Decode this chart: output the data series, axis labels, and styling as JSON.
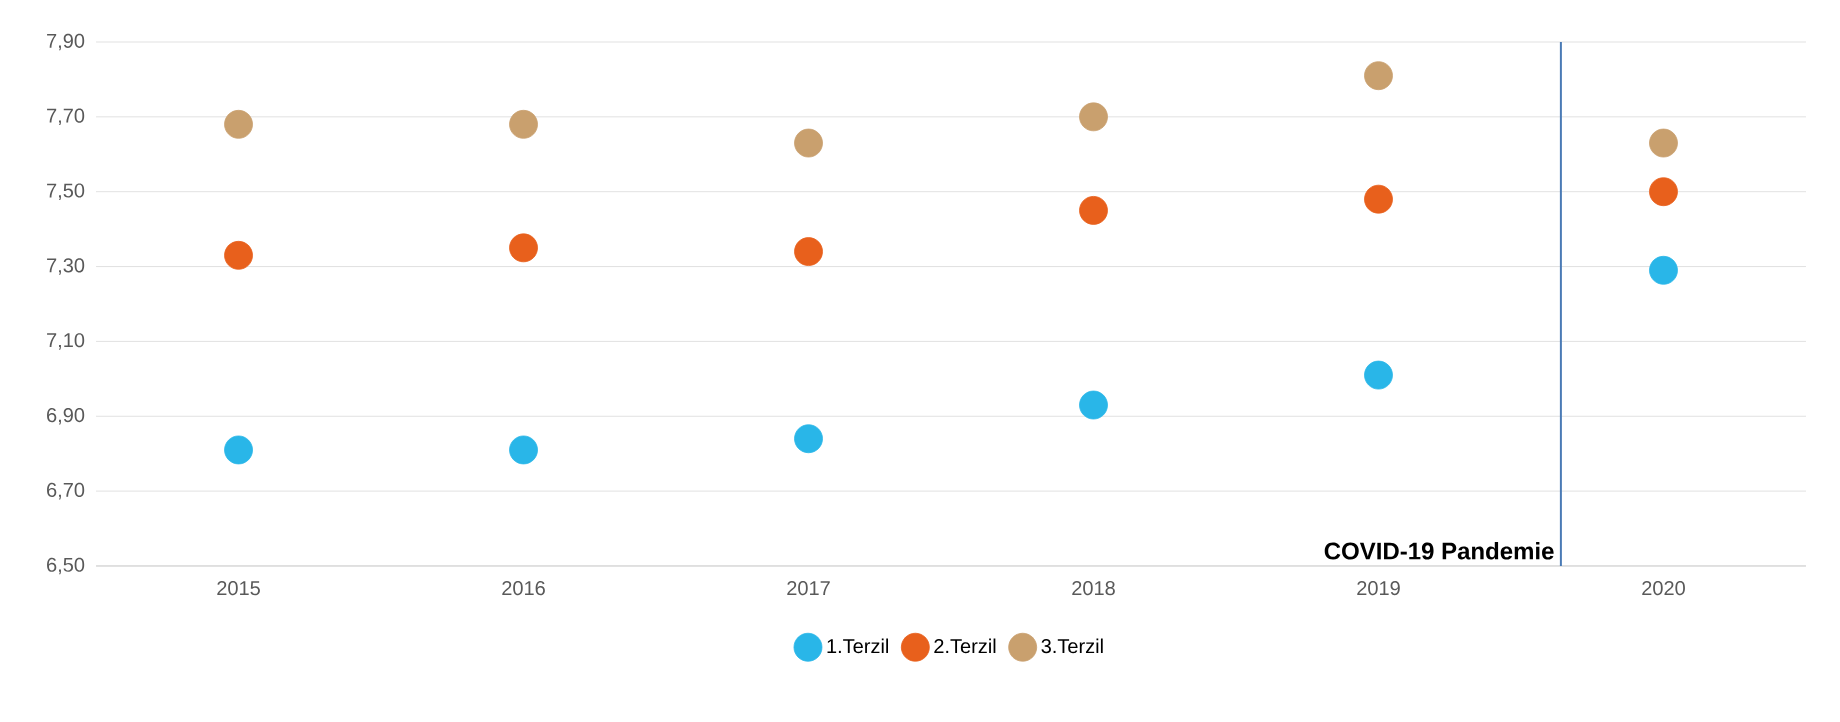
{
  "chart_data": {
    "type": "scatter",
    "x": [
      2015,
      2016,
      2017,
      2018,
      2019,
      2020
    ],
    "series": [
      {
        "name": "1.Terzil",
        "color": "#29b6e8",
        "values": [
          6.81,
          6.81,
          6.84,
          6.93,
          7.01,
          7.29
        ]
      },
      {
        "name": "2.Terzil",
        "color": "#e8601c",
        "values": [
          7.33,
          7.35,
          7.34,
          7.45,
          7.48,
          7.5
        ]
      },
      {
        "name": "3.Terzil",
        "color": "#c9a06e",
        "values": [
          7.68,
          7.68,
          7.63,
          7.7,
          7.81,
          7.63
        ]
      }
    ],
    "xlim": [
      2014.5,
      2020.5
    ],
    "xticks": [
      2015,
      2016,
      2017,
      2018,
      2019,
      2020
    ],
    "ylim": [
      6.5,
      7.9
    ],
    "yticks": [
      {
        "value": 6.5,
        "label": "6,50"
      },
      {
        "value": 6.7,
        "label": "6,70"
      },
      {
        "value": 6.9,
        "label": "6,90"
      },
      {
        "value": 7.1,
        "label": "7,10"
      },
      {
        "value": 7.3,
        "label": "7,30"
      },
      {
        "value": 7.5,
        "label": "7,50"
      },
      {
        "value": 7.7,
        "label": "7,70"
      },
      {
        "value": 7.9,
        "label": "7,90"
      }
    ],
    "ref_lines": [
      {
        "axis": "x",
        "value": 2019.64,
        "label": "COVID-19 Pandemie",
        "color": "#4a7ab5"
      }
    ],
    "grid": "y",
    "legend": "bottom",
    "marker": "circle"
  }
}
